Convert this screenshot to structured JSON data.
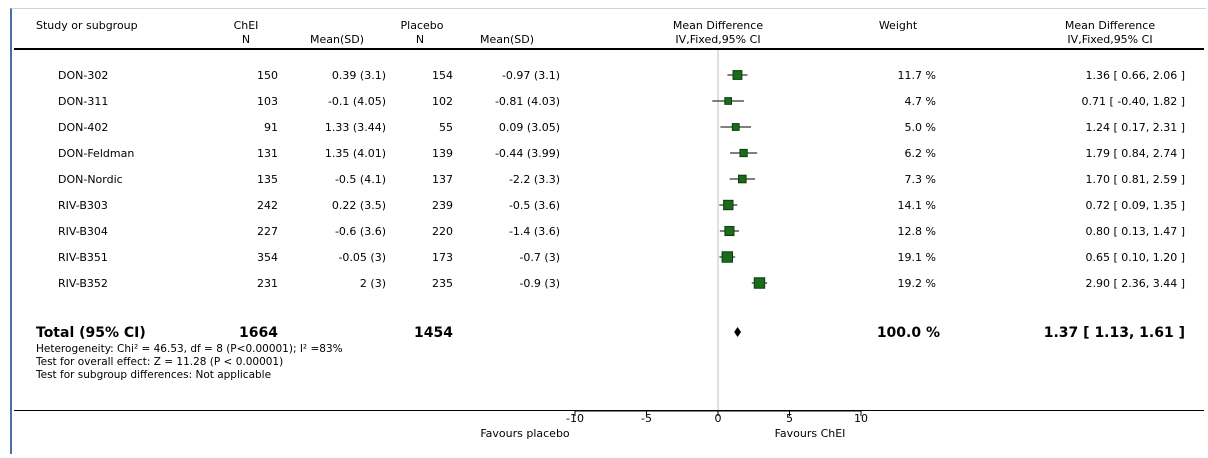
{
  "header": {
    "study_col": "Study or subgroup",
    "group1_name": "ChEI",
    "group1_n": "N",
    "group1_mean": "Mean(SD)",
    "group2_name": "Placebo",
    "group2_n": "N",
    "group2_mean": "Mean(SD)",
    "plot_title": "Mean Difference",
    "plot_method": "IV,Fixed,95% CI",
    "weight_col": "Weight",
    "md_title": "Mean Difference",
    "md_method": "IV,Fixed,95% CI"
  },
  "studies": [
    {
      "name": "DON-302",
      "n1": "150",
      "m1": "0.39 (3.1)",
      "n2": "154",
      "m2": "-0.97 (3.1)",
      "weight": "11.7 %",
      "ci_text": "1.36 [ 0.66, 2.06 ]"
    },
    {
      "name": "DON-311",
      "n1": "103",
      "m1": "-0.1 (4.05)",
      "n2": "102",
      "m2": "-0.81 (4.03)",
      "weight": "4.7 %",
      "ci_text": "0.71 [ -0.40, 1.82 ]"
    },
    {
      "name": "DON-402",
      "n1": "91",
      "m1": "1.33 (3.44)",
      "n2": "55",
      "m2": "0.09 (3.05)",
      "weight": "5.0 %",
      "ci_text": "1.24 [ 0.17, 2.31 ]"
    },
    {
      "name": "DON-Feldman",
      "n1": "131",
      "m1": "1.35 (4.01)",
      "n2": "139",
      "m2": "-0.44 (3.99)",
      "weight": "6.2 %",
      "ci_text": "1.79 [ 0.84, 2.74 ]"
    },
    {
      "name": "DON-Nordic",
      "n1": "135",
      "m1": "-0.5 (4.1)",
      "n2": "137",
      "m2": "-2.2 (3.3)",
      "weight": "7.3 %",
      "ci_text": "1.70 [ 0.81, 2.59 ]"
    },
    {
      "name": "RIV-B303",
      "n1": "242",
      "m1": "0.22 (3.5)",
      "n2": "239",
      "m2": "-0.5 (3.6)",
      "weight": "14.1 %",
      "ci_text": "0.72 [ 0.09, 1.35 ]"
    },
    {
      "name": "RIV-B304",
      "n1": "227",
      "m1": "-0.6 (3.6)",
      "n2": "220",
      "m2": "-1.4 (3.6)",
      "weight": "12.8 %",
      "ci_text": "0.80 [ 0.13, 1.47 ]"
    },
    {
      "name": "RIV-B351",
      "n1": "354",
      "m1": "-0.05 (3)",
      "n2": "173",
      "m2": "-0.7 (3)",
      "weight": "19.1 %",
      "ci_text": "0.65 [ 0.10, 1.20 ]"
    },
    {
      "name": "RIV-B352",
      "n1": "231",
      "m1": "2 (3)",
      "n2": "235",
      "m2": "-0.9 (3)",
      "weight": "19.2 %",
      "ci_text": "2.90 [ 2.36, 3.44 ]"
    }
  ],
  "total": {
    "label": "Total (95% CI)",
    "n1": "1664",
    "n2": "1454",
    "weight": "100.0 %",
    "ci_text": "1.37 [ 1.13, 1.61 ]"
  },
  "footnotes": {
    "heterogeneity": "Heterogeneity: Chi² = 46.53, df = 8 (P<0.00001); I² =83%",
    "overall": "Test for overall effect: Z = 11.28 (P < 0.00001)",
    "subgroup": "Test for subgroup differences: Not applicable"
  },
  "axis": {
    "favours_left": "Favours placebo",
    "favours_right": "Favours ChEI"
  },
  "colors": {
    "marker": "#1a6b1a",
    "marker_border": "#0a3d0a",
    "zero_line": "#c0c0c0"
  },
  "chart_data": {
    "type": "forest",
    "xlim": [
      -10,
      10
    ],
    "ticks": [
      -10,
      -5,
      0,
      5,
      10
    ],
    "tick_labels": [
      "-10",
      "-5",
      "0",
      "5",
      "10"
    ],
    "reference_line": 0,
    "series": [
      {
        "study": "DON-302",
        "md": 1.36,
        "lo": 0.66,
        "hi": 2.06,
        "weight": 11.7
      },
      {
        "study": "DON-311",
        "md": 0.71,
        "lo": -0.4,
        "hi": 1.82,
        "weight": 4.7
      },
      {
        "study": "DON-402",
        "md": 1.24,
        "lo": 0.17,
        "hi": 2.31,
        "weight": 5.0
      },
      {
        "study": "DON-Feldman",
        "md": 1.79,
        "lo": 0.84,
        "hi": 2.74,
        "weight": 6.2
      },
      {
        "study": "DON-Nordic",
        "md": 1.7,
        "lo": 0.81,
        "hi": 2.59,
        "weight": 7.3
      },
      {
        "study": "RIV-B303",
        "md": 0.72,
        "lo": 0.09,
        "hi": 1.35,
        "weight": 14.1
      },
      {
        "study": "RIV-B304",
        "md": 0.8,
        "lo": 0.13,
        "hi": 1.47,
        "weight": 12.8
      },
      {
        "study": "RIV-B351",
        "md": 0.65,
        "lo": 0.1,
        "hi": 1.2,
        "weight": 19.1
      },
      {
        "study": "RIV-B352",
        "md": 2.9,
        "lo": 2.36,
        "hi": 3.44,
        "weight": 19.2
      }
    ],
    "pooled": {
      "md": 1.37,
      "lo": 1.13,
      "hi": 1.61
    }
  }
}
